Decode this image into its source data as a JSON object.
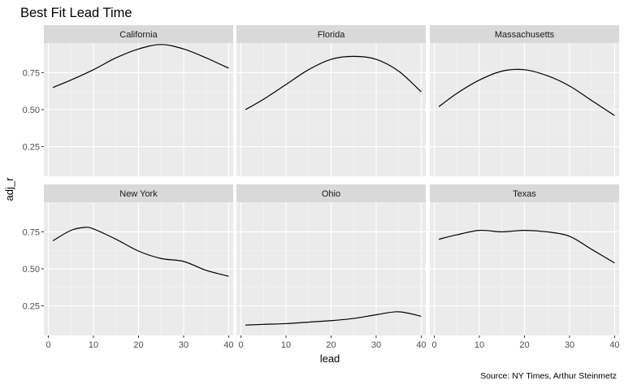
{
  "chart_data": {
    "type": "line",
    "title": "Best Fit Lead Time",
    "xlabel": "lead",
    "ylabel": "adj_r",
    "caption": "Source: NY Times, Arthur Steinmetz",
    "xlim": [
      -1,
      41
    ],
    "ylim": [
      0.05,
      0.95
    ],
    "x_ticks": [
      0,
      10,
      20,
      30,
      40
    ],
    "x_tick_labels": [
      "0",
      "10",
      "20",
      "30",
      "40"
    ],
    "y_ticks": [
      0.25,
      0.5,
      0.75
    ],
    "y_tick_labels": [
      "0.25",
      "0.50",
      "0.75"
    ],
    "grid": true,
    "layout": "facet grid, 2 rows x 3 columns",
    "panels": [
      {
        "label": "California",
        "x": [
          1,
          5,
          10,
          15,
          20,
          25,
          30,
          35,
          40
        ],
        "y": [
          0.65,
          0.7,
          0.77,
          0.85,
          0.91,
          0.94,
          0.91,
          0.85,
          0.78
        ]
      },
      {
        "label": "Florida",
        "x": [
          1,
          5,
          10,
          15,
          20,
          25,
          30,
          35,
          40
        ],
        "y": [
          0.5,
          0.57,
          0.67,
          0.77,
          0.84,
          0.86,
          0.84,
          0.76,
          0.62
        ]
      },
      {
        "label": "Massachusetts",
        "x": [
          1,
          5,
          10,
          15,
          20,
          25,
          30,
          35,
          40
        ],
        "y": [
          0.52,
          0.61,
          0.7,
          0.76,
          0.77,
          0.73,
          0.66,
          0.56,
          0.46
        ]
      },
      {
        "label": "New York",
        "x": [
          1,
          5,
          8,
          10,
          15,
          20,
          25,
          30,
          35,
          40
        ],
        "y": [
          0.69,
          0.76,
          0.78,
          0.77,
          0.7,
          0.62,
          0.57,
          0.55,
          0.49,
          0.45
        ]
      },
      {
        "label": "Ohio",
        "x": [
          1,
          5,
          10,
          15,
          20,
          25,
          30,
          35,
          40
        ],
        "y": [
          0.12,
          0.125,
          0.13,
          0.14,
          0.15,
          0.165,
          0.19,
          0.21,
          0.18
        ]
      },
      {
        "label": "Texas",
        "x": [
          1,
          5,
          10,
          15,
          20,
          25,
          30,
          35,
          40
        ],
        "y": [
          0.7,
          0.73,
          0.76,
          0.75,
          0.76,
          0.75,
          0.72,
          0.63,
          0.54
        ]
      }
    ]
  }
}
